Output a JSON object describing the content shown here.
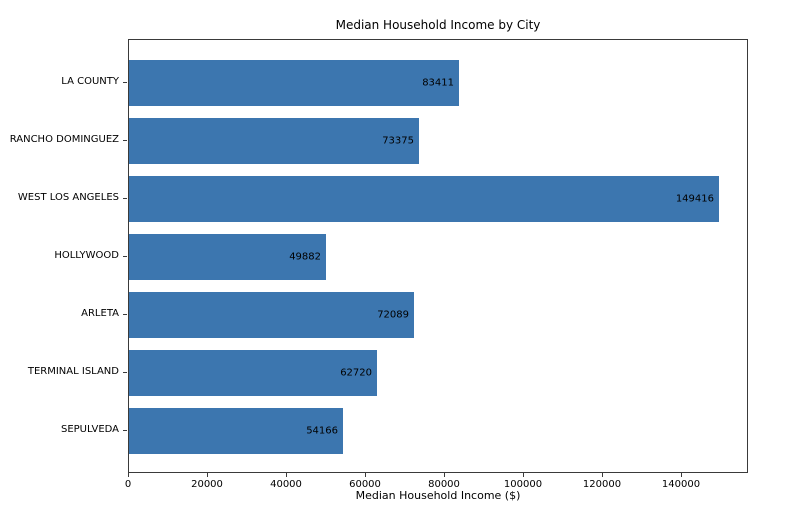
{
  "chart_data": {
    "type": "bar",
    "orientation": "horizontal",
    "title": "Median Household Income by City",
    "xlabel": "Median Household Income ($)",
    "ylabel": "",
    "categories": [
      "LA COUNTY",
      "RANCHO DOMINGUEZ",
      "WEST LOS ANGELES",
      "HOLLYWOOD",
      "ARLETA",
      "TERMINAL ISLAND",
      "SEPULVEDA"
    ],
    "values": [
      83411,
      73375,
      149416,
      49882,
      72089,
      62720,
      54166
    ],
    "value_labels": [
      "83411",
      "73375",
      "149416",
      "49882",
      "72089",
      "62720",
      "54166"
    ],
    "xticks": [
      0,
      20000,
      40000,
      60000,
      80000,
      100000,
      120000,
      140000
    ],
    "xtick_labels": [
      "0",
      "20000",
      "40000",
      "60000",
      "80000",
      "100000",
      "120000",
      "140000"
    ],
    "xlim": [
      0,
      156887
    ],
    "bar_color": "#3c76af",
    "bar_rel_height": 0.8,
    "grid": false,
    "legend": false
  }
}
